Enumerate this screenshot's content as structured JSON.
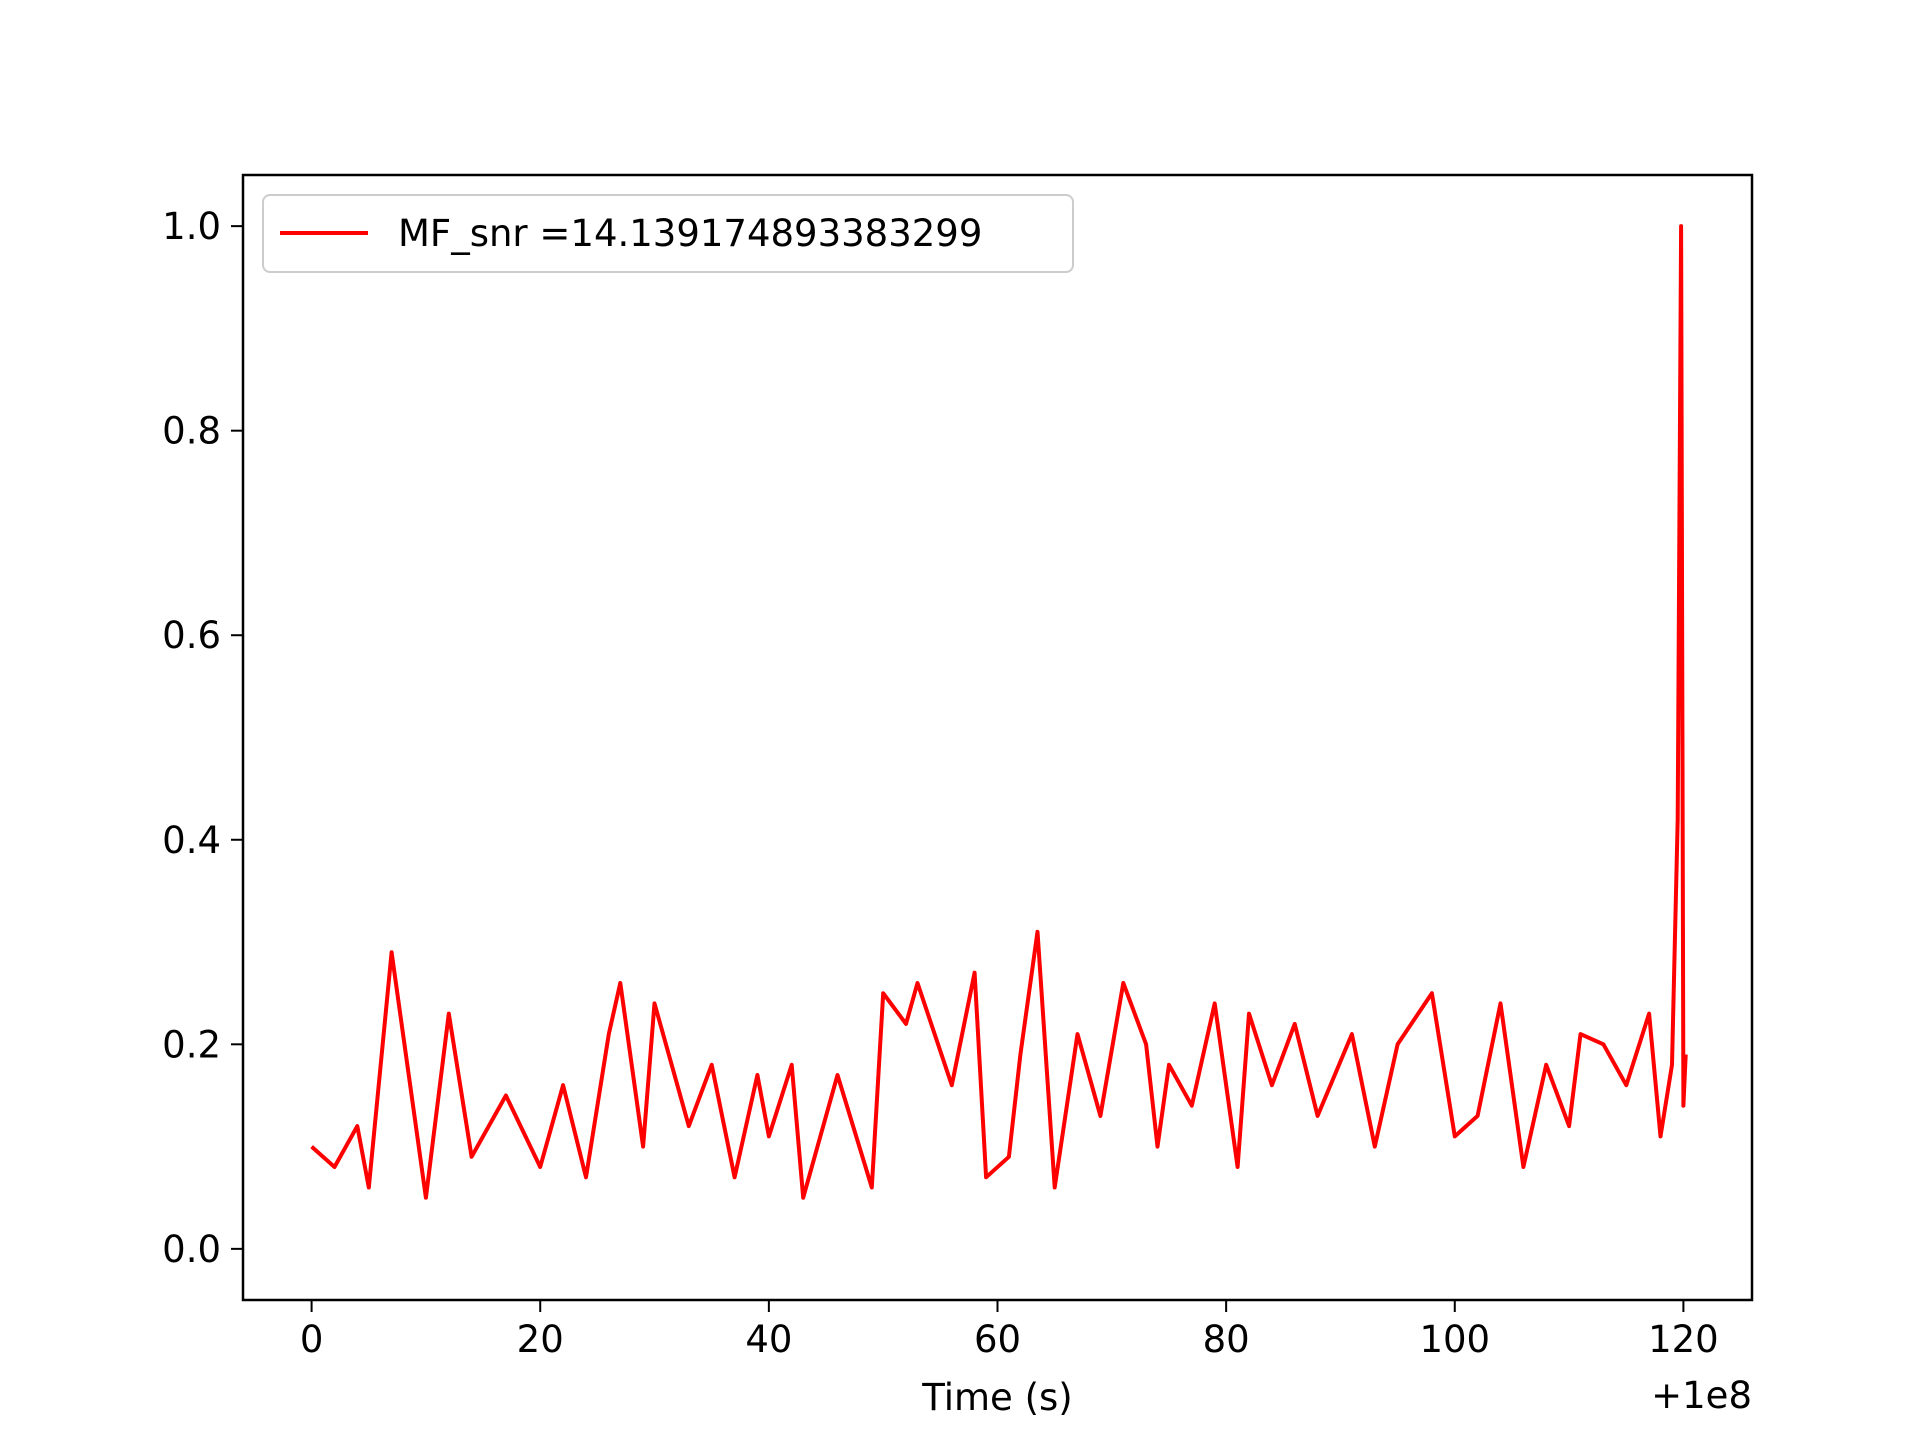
{
  "chart_data": {
    "type": "line",
    "title": "",
    "xlabel": "Time (s)",
    "ylabel": "",
    "x_offset_label": "+1e8",
    "xlim": [
      -6,
      126
    ],
    "ylim": [
      -0.05,
      1.05
    ],
    "xticks": [
      0,
      20,
      40,
      60,
      80,
      100,
      120
    ],
    "xtick_labels": [
      "0",
      "20",
      "40",
      "60",
      "80",
      "100",
      "120"
    ],
    "yticks": [
      0.0,
      0.2,
      0.4,
      0.6,
      0.8,
      1.0
    ],
    "ytick_labels": [
      "0.0",
      "0.2",
      "0.4",
      "0.6",
      "0.8",
      "1.0"
    ],
    "grid": false,
    "legend_position": "upper-left",
    "series": [
      {
        "name": "MF_snr =14.139174893383299",
        "color": "#ff0000",
        "x": [
          0,
          2,
          4,
          5,
          7,
          10,
          12,
          14,
          17,
          20,
          22,
          24,
          26,
          27,
          29,
          30,
          33,
          35,
          37,
          39,
          40,
          42,
          43,
          46,
          49,
          50,
          52,
          53,
          56,
          58,
          59,
          61,
          62,
          63.5,
          65,
          67,
          69,
          71,
          73,
          74,
          75,
          77,
          79,
          81,
          82,
          84,
          86,
          88,
          91,
          93,
          95,
          98,
          100,
          102,
          104,
          106,
          108,
          110,
          111,
          113,
          115,
          117,
          118,
          119,
          119.5,
          119.8,
          120,
          120.2
        ],
        "y": [
          0.1,
          0.08,
          0.12,
          0.06,
          0.29,
          0.05,
          0.23,
          0.09,
          0.15,
          0.08,
          0.16,
          0.07,
          0.21,
          0.26,
          0.1,
          0.24,
          0.12,
          0.18,
          0.07,
          0.17,
          0.11,
          0.18,
          0.05,
          0.17,
          0.06,
          0.25,
          0.22,
          0.26,
          0.16,
          0.27,
          0.07,
          0.09,
          0.19,
          0.31,
          0.06,
          0.21,
          0.13,
          0.26,
          0.2,
          0.1,
          0.18,
          0.14,
          0.24,
          0.08,
          0.23,
          0.16,
          0.22,
          0.13,
          0.21,
          0.1,
          0.2,
          0.25,
          0.11,
          0.13,
          0.24,
          0.08,
          0.18,
          0.12,
          0.21,
          0.2,
          0.16,
          0.23,
          0.11,
          0.18,
          0.42,
          1.0,
          0.14,
          0.19
        ]
      }
    ]
  }
}
